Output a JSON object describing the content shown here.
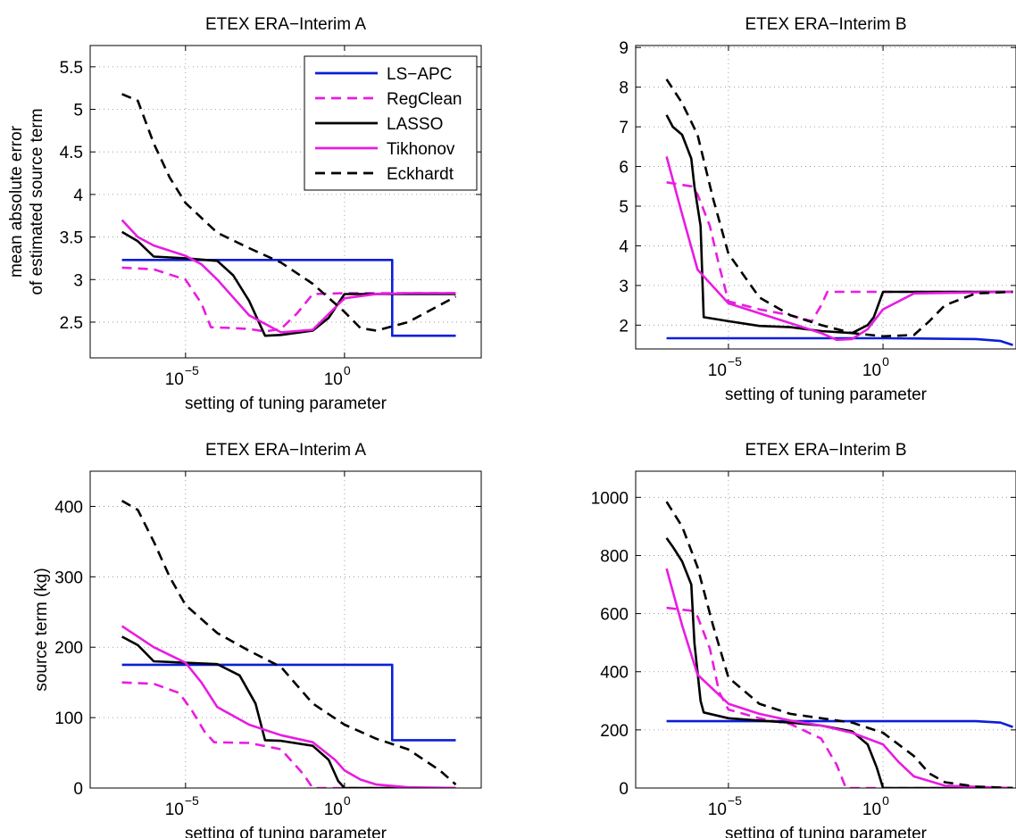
{
  "figure": {
    "legend_title": "",
    "colors": {
      "blue": "#0a1fd8",
      "magenta": "#e81ce0",
      "black": "#000000"
    }
  },
  "chart_data": [
    {
      "type": "line",
      "title": "ETEX ERA−Interim A",
      "xlabel": "setting of tuning parameter",
      "ylabel": [
        "mean absolute error",
        "of estimated source term"
      ],
      "xscale": "log",
      "xlim": [
        -8,
        4.3
      ],
      "ylim": [
        2.08,
        5.75
      ],
      "yticks": [
        2.5,
        3,
        3.5,
        4,
        4.5,
        5,
        5.5
      ],
      "yticklabels": [
        "2.5",
        "3",
        "3.5",
        "4",
        "4.5",
        "5",
        "5.5"
      ],
      "xticks": [
        -5,
        0
      ],
      "xticklabels": [
        {
          "base": "10",
          "exp": "−5"
        },
        {
          "base": "10",
          "exp": "0"
        }
      ],
      "grid": true,
      "legend": {
        "position": "top-right",
        "entries": [
          "LS−APC",
          "RegClean",
          "LASSO",
          "Tikhonov",
          "Eckhardt"
        ]
      },
      "series": [
        {
          "name": "LS−APC",
          "color": "#0a1fd8",
          "dash": "solid",
          "x": [
            -7,
            1.5,
            1.5,
            3.5
          ],
          "y": [
            3.23,
            3.23,
            2.34,
            2.34
          ]
        },
        {
          "name": "RegClean",
          "color": "#e81ce0",
          "dash": "dashed",
          "x": [
            -7,
            -6,
            -5,
            -4.5,
            -4.2,
            -3.5,
            -3,
            -2.5,
            -2,
            -1.5,
            -1,
            0,
            3.5
          ],
          "y": [
            3.14,
            3.12,
            3.0,
            2.72,
            2.44,
            2.43,
            2.42,
            2.39,
            2.42,
            2.6,
            2.83,
            2.84,
            2.84
          ]
        },
        {
          "name": "LASSO",
          "color": "#000000",
          "dash": "solid",
          "x": [
            -7,
            -6.5,
            -6,
            -5,
            -4,
            -3.5,
            -3,
            -2.5,
            -2,
            -1,
            -0.5,
            0,
            1,
            3.5
          ],
          "y": [
            3.56,
            3.45,
            3.27,
            3.25,
            3.22,
            3.05,
            2.75,
            2.34,
            2.35,
            2.4,
            2.55,
            2.83,
            2.83,
            2.83
          ]
        },
        {
          "name": "Tikhonov",
          "color": "#e81ce0",
          "dash": "solid",
          "x": [
            -7,
            -6.5,
            -6,
            -5,
            -4.5,
            -4,
            -3,
            -2,
            -1,
            0,
            1,
            2,
            3.5
          ],
          "y": [
            3.7,
            3.5,
            3.4,
            3.28,
            3.18,
            3.0,
            2.58,
            2.38,
            2.41,
            2.78,
            2.83,
            2.84,
            2.84
          ]
        },
        {
          "name": "Eckhardt",
          "color": "#000000",
          "dash": "dashed",
          "x": [
            -7,
            -6.5,
            -6,
            -5.5,
            -5,
            -4,
            -3,
            -2,
            -1,
            0,
            0.5,
            1,
            2,
            3.5
          ],
          "y": [
            5.18,
            5.1,
            4.6,
            4.2,
            3.9,
            3.55,
            3.37,
            3.2,
            2.95,
            2.62,
            2.43,
            2.4,
            2.5,
            2.8
          ]
        }
      ]
    },
    {
      "type": "line",
      "title": "ETEX ERA−Interim B",
      "xlabel": "setting of tuning parameter",
      "ylabel": [],
      "xscale": "log",
      "xlim": [
        -8,
        4.3
      ],
      "ylim": [
        1.4,
        9.05
      ],
      "yticks": [
        2,
        3,
        4,
        5,
        6,
        7,
        8,
        9
      ],
      "yticklabels": [
        "2",
        "3",
        "4",
        "5",
        "6",
        "7",
        "8",
        "9"
      ],
      "xticks": [
        -5,
        0
      ],
      "xticklabels": [
        {
          "base": "10",
          "exp": "−5"
        },
        {
          "base": "10",
          "exp": "0"
        }
      ],
      "grid": true,
      "legend": null,
      "series": [
        {
          "name": "LS−APC",
          "color": "#0a1fd8",
          "dash": "solid",
          "x": [
            -7,
            0,
            3,
            3.8,
            4.2
          ],
          "y": [
            1.67,
            1.67,
            1.65,
            1.6,
            1.5
          ]
        },
        {
          "name": "RegClean",
          "color": "#e81ce0",
          "dash": "dashed",
          "x": [
            -7,
            -6.2,
            -6,
            -5.6,
            -5.3,
            -5,
            -4,
            -3,
            -2.3,
            -2,
            -1.8,
            4.2
          ],
          "y": [
            5.6,
            5.5,
            5.3,
            4.5,
            3.5,
            2.6,
            2.4,
            2.25,
            2.1,
            2.5,
            2.84,
            2.84
          ]
        },
        {
          "name": "LASSO",
          "color": "#000000",
          "dash": "solid",
          "x": [
            -7,
            -6.8,
            -6.5,
            -6.2,
            -6.1,
            -5.9,
            -5.8,
            -5,
            -4,
            -3,
            -2,
            -1,
            -0.5,
            -0.3,
            0,
            4.2
          ],
          "y": [
            7.3,
            7.0,
            6.8,
            6.2,
            5.5,
            4.5,
            2.2,
            2.1,
            1.98,
            1.95,
            1.85,
            1.8,
            2.0,
            2.2,
            2.84,
            2.84
          ]
        },
        {
          "name": "Tikhonov",
          "color": "#e81ce0",
          "dash": "solid",
          "x": [
            -7,
            -6.5,
            -6,
            -5,
            -4,
            -3,
            -2,
            -1.5,
            -1,
            -0.5,
            0,
            1,
            4.2
          ],
          "y": [
            6.25,
            4.8,
            3.4,
            2.55,
            2.3,
            2.05,
            1.8,
            1.63,
            1.65,
            1.9,
            2.4,
            2.8,
            2.84
          ]
        },
        {
          "name": "Eckhardt",
          "color": "#000000",
          "dash": "dashed",
          "x": [
            -7,
            -6.5,
            -6,
            -5.5,
            -5,
            -4,
            -3,
            -2,
            -1,
            0,
            1,
            1.5,
            2,
            3,
            4.2
          ],
          "y": [
            8.2,
            7.6,
            6.8,
            5.2,
            3.8,
            2.7,
            2.25,
            2.0,
            1.8,
            1.72,
            1.75,
            2.1,
            2.5,
            2.8,
            2.84
          ]
        }
      ]
    },
    {
      "type": "line",
      "title": "ETEX ERA−Interim A",
      "xlabel": "setting of tuning parameter",
      "ylabel": [
        "source term (kg)"
      ],
      "xscale": "log",
      "xlim": [
        -8,
        4.3
      ],
      "ylim": [
        0,
        450
      ],
      "yticks": [
        0,
        100,
        200,
        300,
        400
      ],
      "yticklabels": [
        "0",
        "100",
        "200",
        "300",
        "400"
      ],
      "xticks": [
        -5,
        0
      ],
      "xticklabels": [
        {
          "base": "10",
          "exp": "−5"
        },
        {
          "base": "10",
          "exp": "0"
        }
      ],
      "grid": true,
      "legend": null,
      "series": [
        {
          "name": "LS−APC",
          "color": "#0a1fd8",
          "dash": "solid",
          "x": [
            -7,
            1.5,
            1.5,
            3.5
          ],
          "y": [
            175,
            175,
            68,
            68
          ]
        },
        {
          "name": "RegClean",
          "color": "#e81ce0",
          "dash": "dashed",
          "x": [
            -7,
            -6,
            -5.2,
            -4.8,
            -4.4,
            -4.1,
            -3,
            -2,
            -1.3,
            -1,
            3.5
          ],
          "y": [
            150,
            148,
            135,
            110,
            80,
            65,
            64,
            55,
            20,
            0,
            0
          ]
        },
        {
          "name": "LASSO",
          "color": "#000000",
          "dash": "solid",
          "x": [
            -7,
            -6.5,
            -6,
            -4,
            -3.3,
            -2.8,
            -2.5,
            -2,
            -1,
            -0.5,
            -0.2,
            0,
            3.5
          ],
          "y": [
            215,
            203,
            180,
            176,
            160,
            120,
            68,
            67,
            60,
            40,
            10,
            0,
            0
          ]
        },
        {
          "name": "Tikhonov",
          "color": "#e81ce0",
          "dash": "solid",
          "x": [
            -7,
            -6,
            -5,
            -4.5,
            -4,
            -3,
            -2,
            -1,
            -0.3,
            0,
            0.5,
            1,
            2,
            3.5
          ],
          "y": [
            230,
            200,
            178,
            150,
            115,
            90,
            75,
            65,
            40,
            25,
            12,
            5,
            1,
            0
          ]
        },
        {
          "name": "Eckhardt",
          "color": "#000000",
          "dash": "dashed",
          "x": [
            -7,
            -6.5,
            -6,
            -5.5,
            -5,
            -4,
            -3,
            -2,
            -1,
            0,
            1,
            2,
            3,
            3.5
          ],
          "y": [
            408,
            395,
            350,
            300,
            260,
            220,
            195,
            172,
            120,
            90,
            70,
            55,
            25,
            5
          ]
        }
      ]
    },
    {
      "type": "line",
      "title": "ETEX ERA−Interim B",
      "xlabel": "setting of tuning parameter",
      "ylabel": [],
      "xscale": "log",
      "xlim": [
        -8,
        4.3
      ],
      "ylim": [
        0,
        1090
      ],
      "yticks": [
        0,
        200,
        400,
        600,
        800,
        1000
      ],
      "yticklabels": [
        "0",
        "200",
        "400",
        "600",
        "800",
        "1000"
      ],
      "xticks": [
        -5,
        0
      ],
      "xticklabels": [
        {
          "base": "10",
          "exp": "−5"
        },
        {
          "base": "10",
          "exp": "0"
        }
      ],
      "grid": true,
      "legend": null,
      "series": [
        {
          "name": "LS−APC",
          "color": "#0a1fd8",
          "dash": "solid",
          "x": [
            -7,
            0,
            3,
            3.8,
            4.2
          ],
          "y": [
            230,
            230,
            230,
            225,
            210
          ]
        },
        {
          "name": "RegClean",
          "color": "#e81ce0",
          "dash": "dashed",
          "x": [
            -7,
            -6.2,
            -6,
            -5.6,
            -5.3,
            -5,
            -4,
            -3,
            -2,
            -1.5,
            -1.2,
            -1,
            4.2
          ],
          "y": [
            620,
            610,
            590,
            480,
            330,
            270,
            240,
            220,
            170,
            80,
            0,
            0,
            0
          ]
        },
        {
          "name": "LASSO",
          "color": "#000000",
          "dash": "solid",
          "x": [
            -7,
            -6.8,
            -6.5,
            -6.2,
            -6.1,
            -5.9,
            -5.8,
            -5,
            -4,
            -3,
            -2,
            -1,
            -0.5,
            -0.2,
            0,
            4.2
          ],
          "y": [
            860,
            830,
            780,
            700,
            500,
            300,
            260,
            240,
            232,
            225,
            215,
            195,
            150,
            70,
            0,
            0
          ]
        },
        {
          "name": "Tikhonov",
          "color": "#e81ce0",
          "dash": "solid",
          "x": [
            -7,
            -6.5,
            -6,
            -5,
            -4,
            -3,
            -2,
            -1,
            0,
            0.5,
            1,
            2,
            4.2
          ],
          "y": [
            755,
            560,
            390,
            290,
            255,
            232,
            215,
            190,
            150,
            90,
            40,
            8,
            0
          ]
        },
        {
          "name": "Eckhardt",
          "color": "#000000",
          "dash": "dashed",
          "x": [
            -7,
            -6.5,
            -6,
            -5.5,
            -5,
            -4,
            -3,
            -2,
            -1,
            0,
            1,
            1.5,
            2,
            3,
            4.2
          ],
          "y": [
            985,
            900,
            760,
            560,
            380,
            290,
            255,
            240,
            225,
            190,
            110,
            50,
            20,
            5,
            0
          ]
        }
      ]
    }
  ]
}
